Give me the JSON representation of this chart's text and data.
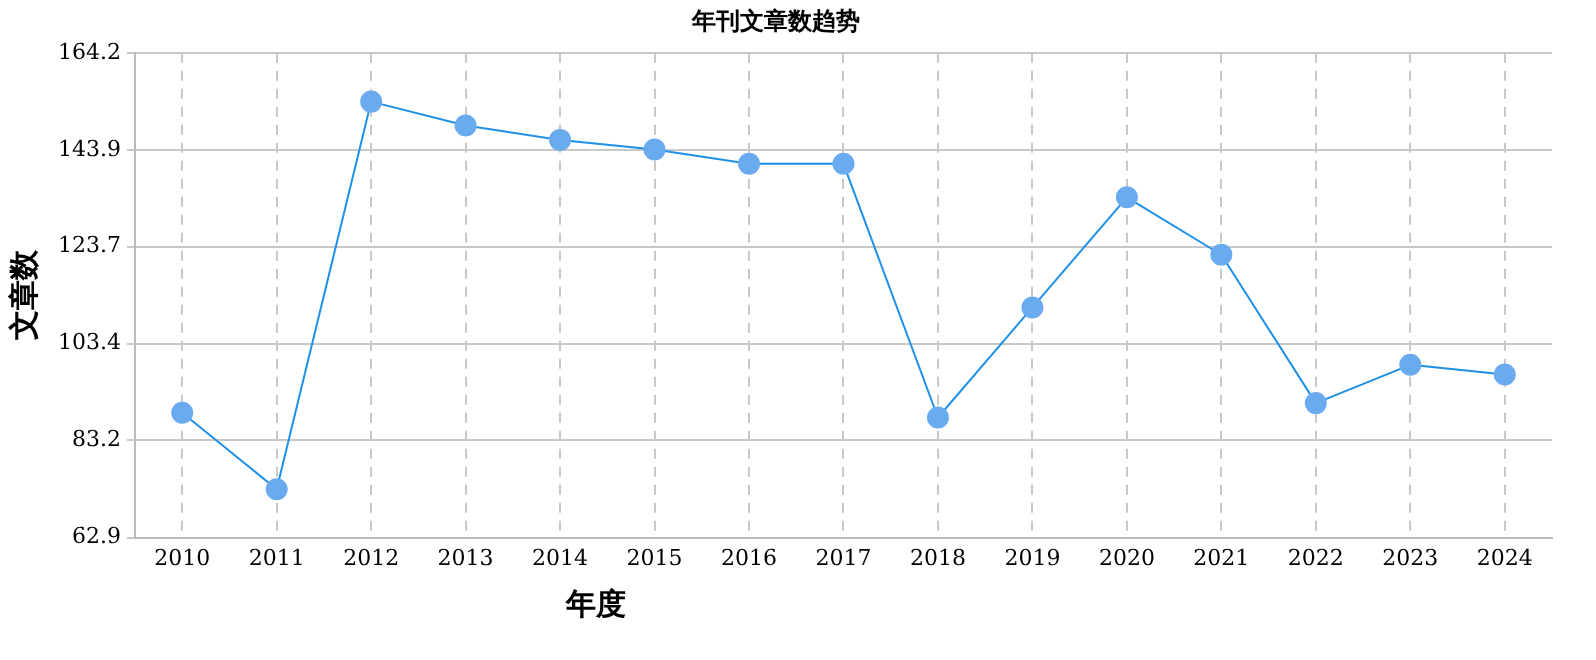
{
  "chart_data": {
    "type": "line",
    "title": "年刊文章数趋势",
    "xlabel": "年度",
    "ylabel": "文章数",
    "categories": [
      "2010",
      "2011",
      "2012",
      "2013",
      "2014",
      "2015",
      "2016",
      "2017",
      "2018",
      "2019",
      "2020",
      "2021",
      "2022",
      "2023",
      "2024"
    ],
    "series": [
      {
        "color": "#1e90e8",
        "values": [
          89,
          73,
          154,
          149,
          146,
          144,
          141,
          141,
          88,
          111,
          134,
          122,
          91,
          99,
          97
        ]
      }
    ],
    "ylim": [
      62.9,
      164.2
    ],
    "yticks": [
      62.9,
      83.2,
      103.4,
      123.7,
      143.9,
      164.2
    ],
    "grid": true,
    "marker": "circle",
    "line_style": "solid",
    "legend": false
  }
}
